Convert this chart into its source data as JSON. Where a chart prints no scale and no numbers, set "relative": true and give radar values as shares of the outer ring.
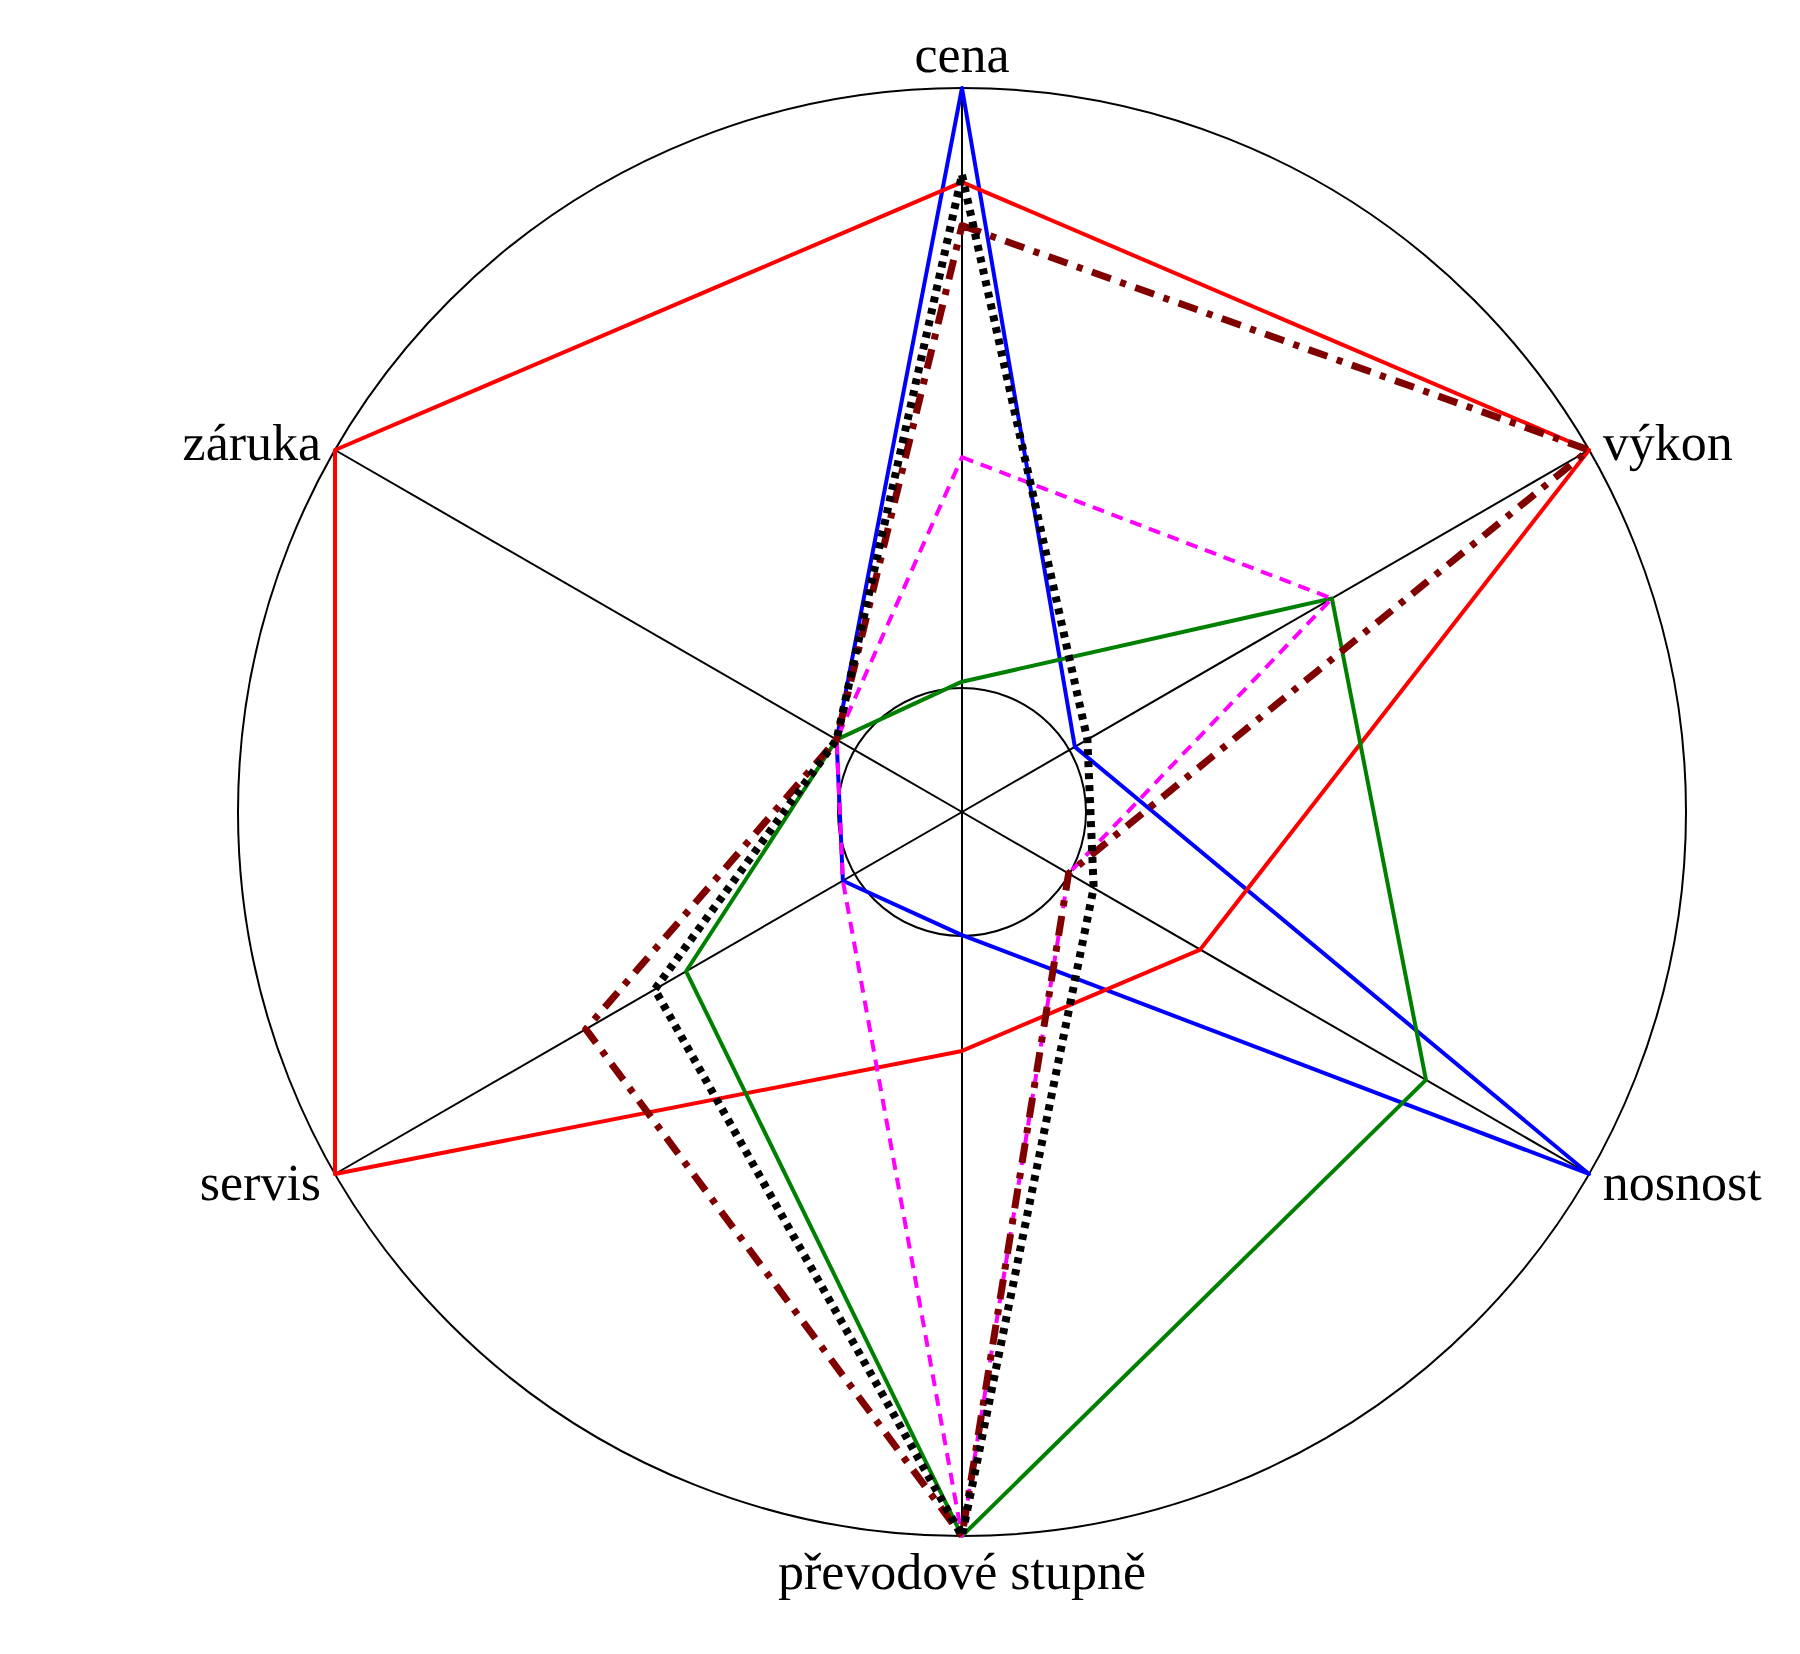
{
  "chart_data": {
    "type": "radar",
    "relative": true,
    "categories": [
      "cena",
      "výkon",
      "nosnost",
      "převodové stupně",
      "servis",
      "záruka"
    ],
    "grid": true,
    "legend": false,
    "marker": "none",
    "series": [
      {
        "color": "#0000ff",
        "line_style": "solid",
        "values": [
          1,
          0.18,
          1,
          0.17,
          0.19,
          0.2
        ]
      },
      {
        "color": "#ff0000",
        "line_style": "solid",
        "values": [
          0.87,
          1,
          0.38,
          0.33,
          1,
          1
        ]
      },
      {
        "color": "#008000",
        "line_style": "solid",
        "values": [
          0.18,
          0.59,
          0.74,
          1,
          0.44,
          0.2
        ]
      },
      {
        "color": "#ff00ff",
        "line_style": "dashed",
        "values": [
          0.49,
          0.59,
          0.17,
          1,
          0.19,
          0.2
        ]
      },
      {
        "color": "#800000",
        "line_style": "dashdot",
        "values": [
          0.81,
          1,
          0.17,
          1,
          0.6,
          0.2
        ]
      },
      {
        "color": "#000000",
        "line_style": "dotted",
        "values": [
          0.88,
          0.2,
          0.21,
          1,
          0.49,
          0.2
        ]
      }
    ]
  }
}
